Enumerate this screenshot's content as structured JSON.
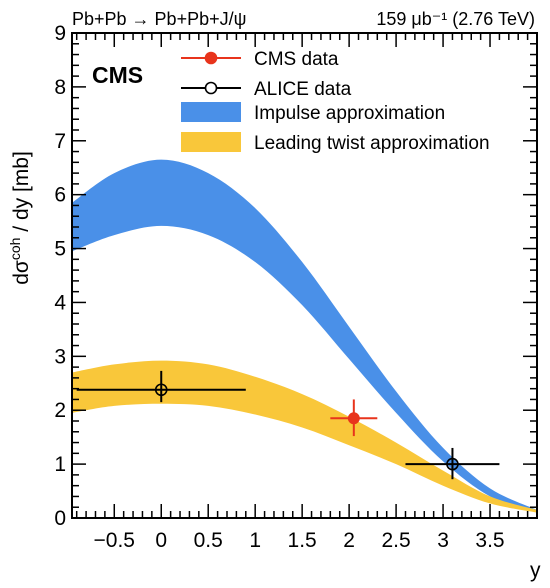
{
  "chart_data": {
    "type": "line",
    "header_left": "Pb+Pb → Pb+Pb+J/ψ",
    "header_right": "159 μb⁻¹ (2.76 TeV)",
    "experiment_label": "CMS",
    "xlabel": "y",
    "ylabel": "dσ^coh / dy [mb]",
    "xlim": [
      -0.95,
      4.0
    ],
    "ylim": [
      0,
      9
    ],
    "x_ticks": [
      -0.5,
      0,
      0.5,
      1,
      1.5,
      2,
      2.5,
      3,
      3.5
    ],
    "x_tick_labels": [
      "−0.5",
      "0",
      "0.5",
      "1",
      "1.5",
      "2",
      "2.5",
      "3",
      "3.5"
    ],
    "y_ticks": [
      0,
      1,
      2,
      3,
      4,
      5,
      6,
      7,
      8,
      9
    ],
    "y_tick_labels": [
      "0",
      "1",
      "2",
      "3",
      "4",
      "5",
      "6",
      "7",
      "8",
      "9"
    ],
    "legend_position": "top-center",
    "legend": [
      {
        "label": "CMS data",
        "kind": "marker-filled",
        "color": "#e8341c"
      },
      {
        "label": "ALICE data",
        "kind": "marker-open",
        "color": "#000000"
      },
      {
        "label": "Impulse approximation",
        "kind": "band",
        "color": "#4a90e8"
      },
      {
        "label": "Leading twist approximation",
        "kind": "band",
        "color": "#f9c73a"
      }
    ],
    "bands": [
      {
        "name": "Impulse approximation",
        "color": "#4a90e8",
        "x": [
          -0.95,
          -0.5,
          0.0,
          0.5,
          1.0,
          1.5,
          2.0,
          2.5,
          3.0,
          3.5,
          4.0
        ],
        "lower": [
          4.95,
          5.25,
          5.42,
          5.25,
          4.75,
          3.95,
          2.95,
          1.95,
          1.05,
          0.4,
          0.1
        ],
        "upper": [
          5.85,
          6.4,
          6.65,
          6.4,
          5.75,
          4.75,
          3.55,
          2.35,
          1.3,
          0.55,
          0.15
        ]
      },
      {
        "name": "Leading twist approximation",
        "color": "#f9c73a",
        "x": [
          -0.95,
          -0.5,
          0.0,
          0.5,
          1.0,
          1.5,
          2.0,
          2.5,
          3.0,
          3.5,
          4.0
        ],
        "lower": [
          1.95,
          2.08,
          2.12,
          2.08,
          1.92,
          1.68,
          1.35,
          1.0,
          0.6,
          0.27,
          0.1
        ],
        "upper": [
          2.7,
          2.85,
          2.92,
          2.85,
          2.62,
          2.3,
          1.88,
          1.4,
          0.88,
          0.4,
          0.15
        ]
      }
    ],
    "points": [
      {
        "series": "CMS data",
        "x": 2.05,
        "y": 1.85,
        "xerr": [
          0.25,
          0.25
        ],
        "yerr": [
          0.33,
          0.35
        ],
        "style": "filled",
        "color": "#e8341c"
      },
      {
        "series": "ALICE data",
        "x": 0.0,
        "y": 2.38,
        "xerr": [
          0.9,
          0.9
        ],
        "yerr": [
          0.23,
          0.35
        ],
        "style": "open",
        "color": "#000000"
      },
      {
        "series": "ALICE data",
        "x": 3.1,
        "y": 1.0,
        "xerr": [
          0.5,
          0.5
        ],
        "yerr": [
          0.28,
          0.3
        ],
        "style": "open",
        "color": "#000000"
      }
    ]
  }
}
